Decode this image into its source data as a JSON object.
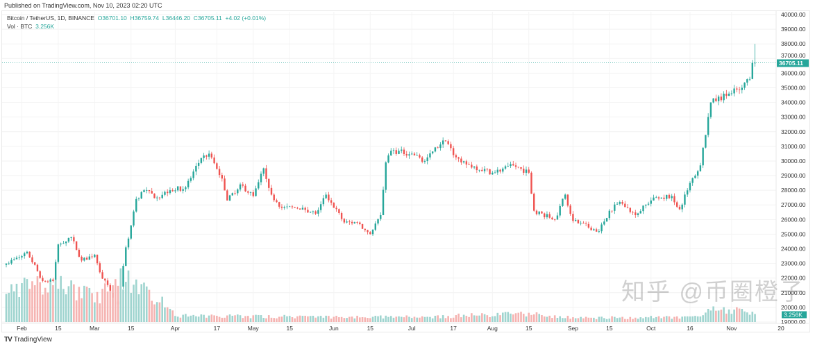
{
  "published": "Published on TradingView.com, Nov 10, 2023 02:20 UTC",
  "legend": {
    "symbol": "Bitcoin / TetherUS, 1D, BINANCE",
    "open": "O36701.10",
    "high": "H36759.74",
    "low": "L36446.20",
    "close": "C36705.11",
    "change": "+4.02 (+0.01%)",
    "vol_label": "Vol · BTC",
    "vol_value": "3.256K"
  },
  "footer": {
    "logo": "TradingView"
  },
  "watermark": "知乎 @币圈橙子",
  "colors": {
    "up": "#26a69a",
    "down": "#ef5350",
    "up_vol": "#9fd4cf",
    "down_vol": "#f5b3b1"
  },
  "chart_data": {
    "type": "candlestick",
    "title": "Bitcoin / TetherUS, 1D, BINANCE",
    "ylim": [
      19000,
      40000
    ],
    "y_ticks": [
      "40000.00",
      "39000.00",
      "38000.00",
      "37000.00",
      "36000.00",
      "35000.00",
      "34000.00",
      "33000.00",
      "32000.00",
      "31000.00",
      "30000.00",
      "29000.00",
      "28000.00",
      "27000.00",
      "26000.00",
      "25000.00",
      "24000.00",
      "23000.00",
      "22000.00",
      "21000.00",
      "20000.00",
      "19000.00"
    ],
    "x_ticks": [
      {
        "label": "Feb",
        "date": "2023-02-01"
      },
      {
        "label": "15",
        "date": "2023-02-15"
      },
      {
        "label": "Mar",
        "date": "2023-03-01"
      },
      {
        "label": "15",
        "date": "2023-03-15"
      },
      {
        "label": "Apr",
        "date": "2023-04-01"
      },
      {
        "label": "17",
        "date": "2023-04-17"
      },
      {
        "label": "May",
        "date": "2023-05-01"
      },
      {
        "label": "15",
        "date": "2023-05-15"
      },
      {
        "label": "Jun",
        "date": "2023-06-01"
      },
      {
        "label": "15",
        "date": "2023-06-15"
      },
      {
        "label": "Jul",
        "date": "2023-07-01"
      },
      {
        "label": "17",
        "date": "2023-07-17"
      },
      {
        "label": "Aug",
        "date": "2023-08-01"
      },
      {
        "label": "15",
        "date": "2023-08-15"
      },
      {
        "label": "Sep",
        "date": "2023-09-01"
      },
      {
        "label": "15",
        "date": "2023-09-15"
      },
      {
        "label": "Oct",
        "date": "2023-10-01"
      },
      {
        "label": "16",
        "date": "2023-10-16"
      },
      {
        "label": "Nov",
        "date": "2023-11-01"
      },
      {
        "label": "20",
        "date": "2023-11-20"
      }
    ],
    "last_price": "36705.11",
    "last_volume": "3.256K",
    "close_keypoints": [
      [
        "2023-01-26",
        23000
      ],
      [
        "2023-02-01",
        23500
      ],
      [
        "2023-02-03",
        23800
      ],
      [
        "2023-02-09",
        21800
      ],
      [
        "2023-02-13",
        21800
      ],
      [
        "2023-02-15",
        24300
      ],
      [
        "2023-02-20",
        24800
      ],
      [
        "2023-02-24",
        23200
      ],
      [
        "2023-03-01",
        23600
      ],
      [
        "2023-03-03",
        22400
      ],
      [
        "2023-03-09",
        20400
      ],
      [
        "2023-03-10",
        20200
      ],
      [
        "2023-03-13",
        24100
      ],
      [
        "2023-03-14",
        24700
      ],
      [
        "2023-03-17",
        27400
      ],
      [
        "2023-03-20",
        28000
      ],
      [
        "2023-03-25",
        27500
      ],
      [
        "2023-03-30",
        28000
      ],
      [
        "2023-04-05",
        28200
      ],
      [
        "2023-04-11",
        30200
      ],
      [
        "2023-04-14",
        30500
      ],
      [
        "2023-04-19",
        28800
      ],
      [
        "2023-04-21",
        27300
      ],
      [
        "2023-04-26",
        28400
      ],
      [
        "2023-05-01",
        27600
      ],
      [
        "2023-05-05",
        29500
      ],
      [
        "2023-05-08",
        27700
      ],
      [
        "2023-05-12",
        26800
      ],
      [
        "2023-05-20",
        26800
      ],
      [
        "2023-05-25",
        26400
      ],
      [
        "2023-05-29",
        27700
      ],
      [
        "2023-06-05",
        25800
      ],
      [
        "2023-06-10",
        25800
      ],
      [
        "2023-06-15",
        25000
      ],
      [
        "2023-06-19",
        26300
      ],
      [
        "2023-06-21",
        29900
      ],
      [
        "2023-06-23",
        30700
      ],
      [
        "2023-07-01",
        30500
      ],
      [
        "2023-07-06",
        30000
      ],
      [
        "2023-07-13",
        31400
      ],
      [
        "2023-07-20",
        29900
      ],
      [
        "2023-08-01",
        29200
      ],
      [
        "2023-08-09",
        29700
      ],
      [
        "2023-08-15",
        29200
      ],
      [
        "2023-08-17",
        26600
      ],
      [
        "2023-08-25",
        26000
      ],
      [
        "2023-08-29",
        27700
      ],
      [
        "2023-09-01",
        25900
      ],
      [
        "2023-09-11",
        25200
      ],
      [
        "2023-09-15",
        26600
      ],
      [
        "2023-09-19",
        27200
      ],
      [
        "2023-09-25",
        26300
      ],
      [
        "2023-10-02",
        27500
      ],
      [
        "2023-10-09",
        27600
      ],
      [
        "2023-10-12",
        26700
      ],
      [
        "2023-10-16",
        28500
      ],
      [
        "2023-10-20",
        29700
      ],
      [
        "2023-10-23",
        33000
      ],
      [
        "2023-10-24",
        34000
      ],
      [
        "2023-10-31",
        34600
      ],
      [
        "2023-11-05",
        35000
      ],
      [
        "2023-11-08",
        35600
      ],
      [
        "2023-11-09",
        36700
      ],
      [
        "2023-11-10",
        36705.11
      ]
    ],
    "volume_level_keypoints": [
      [
        "2023-01-26",
        0.8
      ],
      [
        "2023-02-15",
        0.9
      ],
      [
        "2023-03-01",
        0.6
      ],
      [
        "2023-03-12",
        1.0
      ],
      [
        "2023-03-20",
        0.8
      ],
      [
        "2023-03-31",
        0.4
      ],
      [
        "2023-04-01",
        0.15
      ],
      [
        "2023-06-01",
        0.12
      ],
      [
        "2023-07-01",
        0.12
      ],
      [
        "2023-08-17",
        0.2
      ],
      [
        "2023-09-01",
        0.1
      ],
      [
        "2023-10-20",
        0.12
      ],
      [
        "2023-10-24",
        0.35
      ],
      [
        "2023-11-10",
        0.25
      ]
    ]
  }
}
